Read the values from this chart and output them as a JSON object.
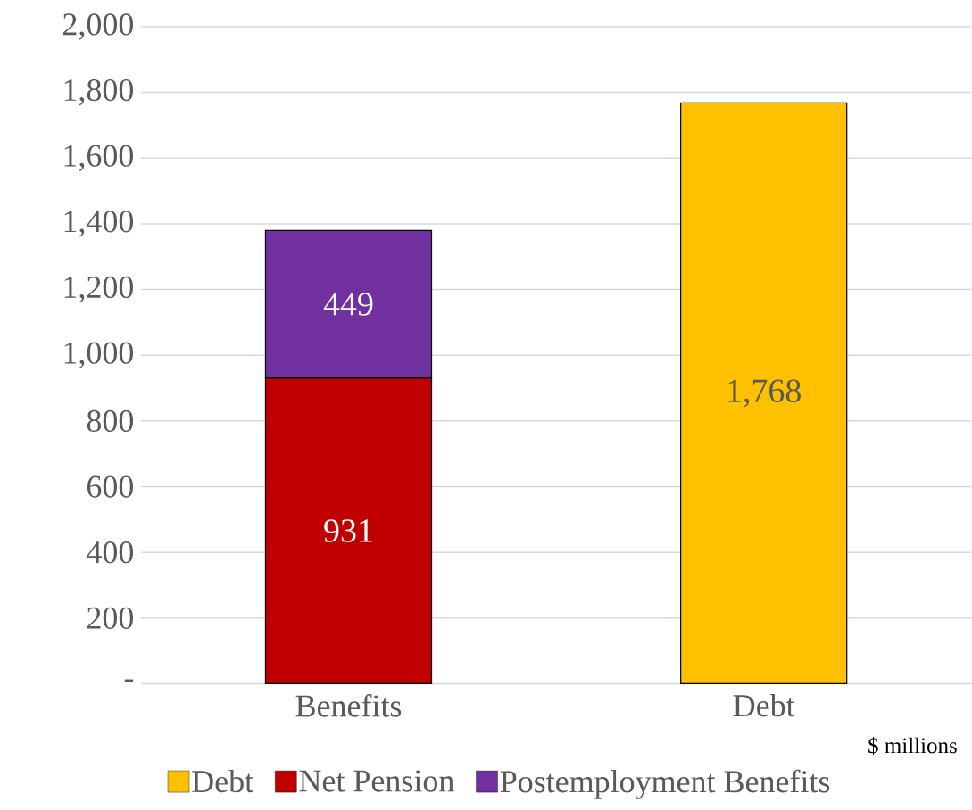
{
  "chart_data": {
    "type": "bar",
    "stacked": true,
    "categories": [
      "Benefits",
      "Debt"
    ],
    "series": [
      {
        "name": "Debt",
        "color": "#ffc000",
        "values": [
          null,
          1768
        ],
        "value_labels": [
          null,
          "1,768"
        ]
      },
      {
        "name": "Net Pension",
        "color": "#c00000",
        "values": [
          931,
          null
        ],
        "value_labels": [
          "931",
          null
        ]
      },
      {
        "name": "Postemployment Benefits",
        "color": "#7030a0",
        "values": [
          449,
          null
        ],
        "value_labels": [
          "449",
          null
        ]
      }
    ],
    "ylim": [
      0,
      2000
    ],
    "yticks": [
      {
        "value": 0,
        "label": "-"
      },
      200,
      400,
      600,
      800,
      {
        "value": 1000,
        "label": "1,000"
      },
      {
        "value": 1200,
        "label": "1,200"
      },
      {
        "value": 1400,
        "label": "1,400"
      },
      {
        "value": 1600,
        "label": "1,600"
      },
      {
        "value": 1800,
        "label": "1,800"
      },
      {
        "value": 2000,
        "label": "2,000"
      }
    ],
    "grid": "y",
    "legend": "bottom",
    "annotations": [
      "$ millions"
    ]
  }
}
